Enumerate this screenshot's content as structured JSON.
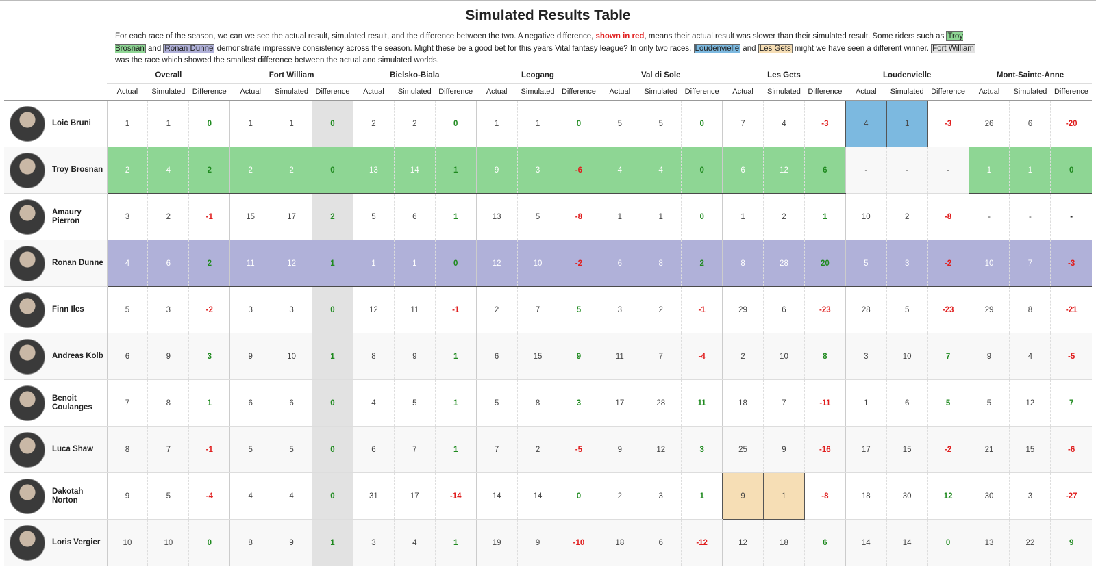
{
  "title": "Simulated Results Table",
  "description": [
    {
      "text": "For each race of the season, we can we see the actual result, simulated result, and the difference between the two. A negative difference, "
    },
    {
      "text": "shown in red",
      "style": "red"
    },
    {
      "text": ", means their actual result was slower than their simulated result. Some riders such as "
    },
    {
      "text": "Troy Brosnan",
      "style": "#8ed694"
    },
    {
      "text": " and "
    },
    {
      "text": "Ronan Dunne",
      "style": "#b0b1d9"
    },
    {
      "text": " demonstrate impressive consistency across the season. Might these be a good bet for this years Vital fantasy league? In only two races, "
    },
    {
      "text": "Loudenvielle",
      "style": "#7cb9e0"
    },
    {
      "text": " and "
    },
    {
      "text": "Les Gets",
      "style": "#f6deb5"
    },
    {
      "text": " might we have seen a different winner. "
    },
    {
      "text": "Fort William",
      "style": "#e2e2e2"
    },
    {
      "text": " was the race which showed the smallest difference between the actual and simulated worlds."
    }
  ],
  "table": {
    "races": [
      "Overall",
      "Fort William",
      "Bielsko-Biala",
      "Leogang",
      "Val di Sole",
      "Les Gets",
      "Loudenvielle",
      "Mont-Sainte-Anne"
    ],
    "subcolumns": [
      "Actual",
      "Simulated",
      "Difference"
    ],
    "rows": [
      {
        "name": "Loic Bruni",
        "results": [
          [
            1,
            1,
            0
          ],
          [
            1,
            1,
            0
          ],
          [
            2,
            2,
            0
          ],
          [
            1,
            1,
            0
          ],
          [
            5,
            5,
            0
          ],
          [
            7,
            4,
            -3
          ],
          [
            4,
            1,
            -3
          ],
          [
            26,
            6,
            -20
          ]
        ]
      },
      {
        "name": "Troy Brosnan",
        "highlight": "#8ed694",
        "results": [
          [
            2,
            4,
            2
          ],
          [
            2,
            2,
            0
          ],
          [
            13,
            14,
            1
          ],
          [
            9,
            3,
            -6
          ],
          [
            4,
            4,
            0
          ],
          [
            6,
            12,
            6
          ],
          [
            "-",
            "-",
            "-"
          ],
          [
            1,
            1,
            0
          ]
        ]
      },
      {
        "name": "Amaury Pierron",
        "results": [
          [
            3,
            2,
            -1
          ],
          [
            15,
            17,
            2
          ],
          [
            5,
            6,
            1
          ],
          [
            13,
            5,
            -8
          ],
          [
            1,
            1,
            0
          ],
          [
            1,
            2,
            1
          ],
          [
            10,
            2,
            -8
          ],
          [
            "-",
            "-",
            "-"
          ]
        ]
      },
      {
        "name": "Ronan Dunne",
        "highlight": "#b0b1d9",
        "results": [
          [
            4,
            6,
            2
          ],
          [
            11,
            12,
            1
          ],
          [
            1,
            1,
            0
          ],
          [
            12,
            10,
            -2
          ],
          [
            6,
            8,
            2
          ],
          [
            8,
            28,
            20
          ],
          [
            5,
            3,
            -2
          ],
          [
            10,
            7,
            -3
          ]
        ]
      },
      {
        "name": "Finn Iles",
        "results": [
          [
            5,
            3,
            -2
          ],
          [
            3,
            3,
            0
          ],
          [
            12,
            11,
            -1
          ],
          [
            2,
            7,
            5
          ],
          [
            3,
            2,
            -1
          ],
          [
            29,
            6,
            -23
          ],
          [
            28,
            5,
            -23
          ],
          [
            29,
            8,
            -21
          ]
        ]
      },
      {
        "name": "Andreas Kolb",
        "results": [
          [
            6,
            9,
            3
          ],
          [
            9,
            10,
            1
          ],
          [
            8,
            9,
            1
          ],
          [
            6,
            15,
            9
          ],
          [
            11,
            7,
            -4
          ],
          [
            2,
            10,
            8
          ],
          [
            3,
            10,
            7
          ],
          [
            9,
            4,
            -5
          ]
        ]
      },
      {
        "name": "Benoit Coulanges",
        "results": [
          [
            7,
            8,
            1
          ],
          [
            6,
            6,
            0
          ],
          [
            4,
            5,
            1
          ],
          [
            5,
            8,
            3
          ],
          [
            17,
            28,
            11
          ],
          [
            18,
            7,
            -11
          ],
          [
            1,
            6,
            5
          ],
          [
            5,
            12,
            7
          ]
        ]
      },
      {
        "name": "Luca Shaw",
        "results": [
          [
            8,
            7,
            -1
          ],
          [
            5,
            5,
            0
          ],
          [
            6,
            7,
            1
          ],
          [
            7,
            2,
            -5
          ],
          [
            9,
            12,
            3
          ],
          [
            25,
            9,
            -16
          ],
          [
            17,
            15,
            -2
          ],
          [
            21,
            15,
            -6
          ]
        ]
      },
      {
        "name": "Dakotah Norton",
        "results": [
          [
            9,
            5,
            -4
          ],
          [
            4,
            4,
            0
          ],
          [
            31,
            17,
            -14
          ],
          [
            14,
            14,
            0
          ],
          [
            2,
            3,
            1
          ],
          [
            9,
            1,
            -8
          ],
          [
            18,
            30,
            12
          ],
          [
            30,
            3,
            -27
          ]
        ]
      },
      {
        "name": "Loris Vergier",
        "results": [
          [
            10,
            10,
            0
          ],
          [
            8,
            9,
            1
          ],
          [
            3,
            4,
            1
          ],
          [
            19,
            9,
            -10
          ],
          [
            18,
            6,
            -12
          ],
          [
            12,
            18,
            6
          ],
          [
            14,
            14,
            0
          ],
          [
            13,
            22,
            9
          ]
        ]
      }
    ]
  }
}
